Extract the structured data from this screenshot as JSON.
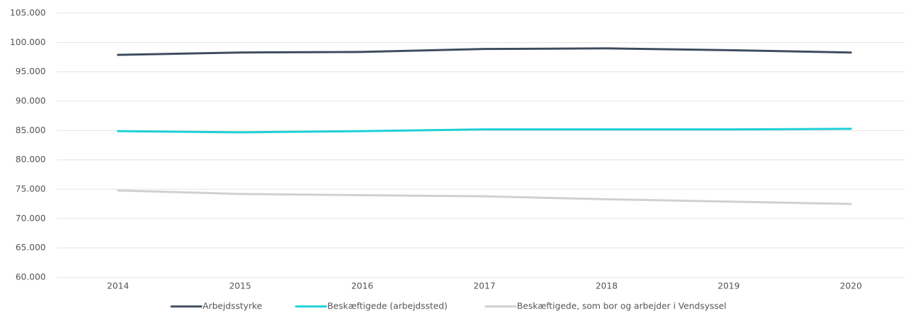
{
  "chart_data": {
    "type": "line",
    "categories": [
      "2014",
      "2015",
      "2016",
      "2017",
      "2018",
      "2019",
      "2020"
    ],
    "series": [
      {
        "name": "Arbejdsstyrke",
        "color": "#3d4c5e",
        "values": [
          97900,
          98300,
          98400,
          98900,
          99000,
          98700,
          98300
        ]
      },
      {
        "name": "Beskæftigede (arbejdssted)",
        "color": "#1ccfd6",
        "values": [
          84900,
          84700,
          84900,
          85200,
          85200,
          85200,
          85300
        ]
      },
      {
        "name": "Beskæftigede, som bor og arbejder i Vendsyssel",
        "color": "#d0d0d0",
        "values": [
          74800,
          74200,
          74000,
          73800,
          73300,
          72900,
          72500
        ]
      }
    ],
    "ylim": [
      60000,
      105000
    ],
    "yticks": [
      {
        "value": 60000,
        "label": "60.000"
      },
      {
        "value": 65000,
        "label": "65.000"
      },
      {
        "value": 70000,
        "label": "70.000"
      },
      {
        "value": 75000,
        "label": "75.000"
      },
      {
        "value": 80000,
        "label": "80.000"
      },
      {
        "value": 85000,
        "label": "85.000"
      },
      {
        "value": 90000,
        "label": "90.000"
      },
      {
        "value": 95000,
        "label": "95.000"
      },
      {
        "value": 100000,
        "label": "100.000"
      },
      {
        "value": 105000,
        "label": "105.000"
      }
    ],
    "grid": true,
    "legend": "bottom"
  }
}
